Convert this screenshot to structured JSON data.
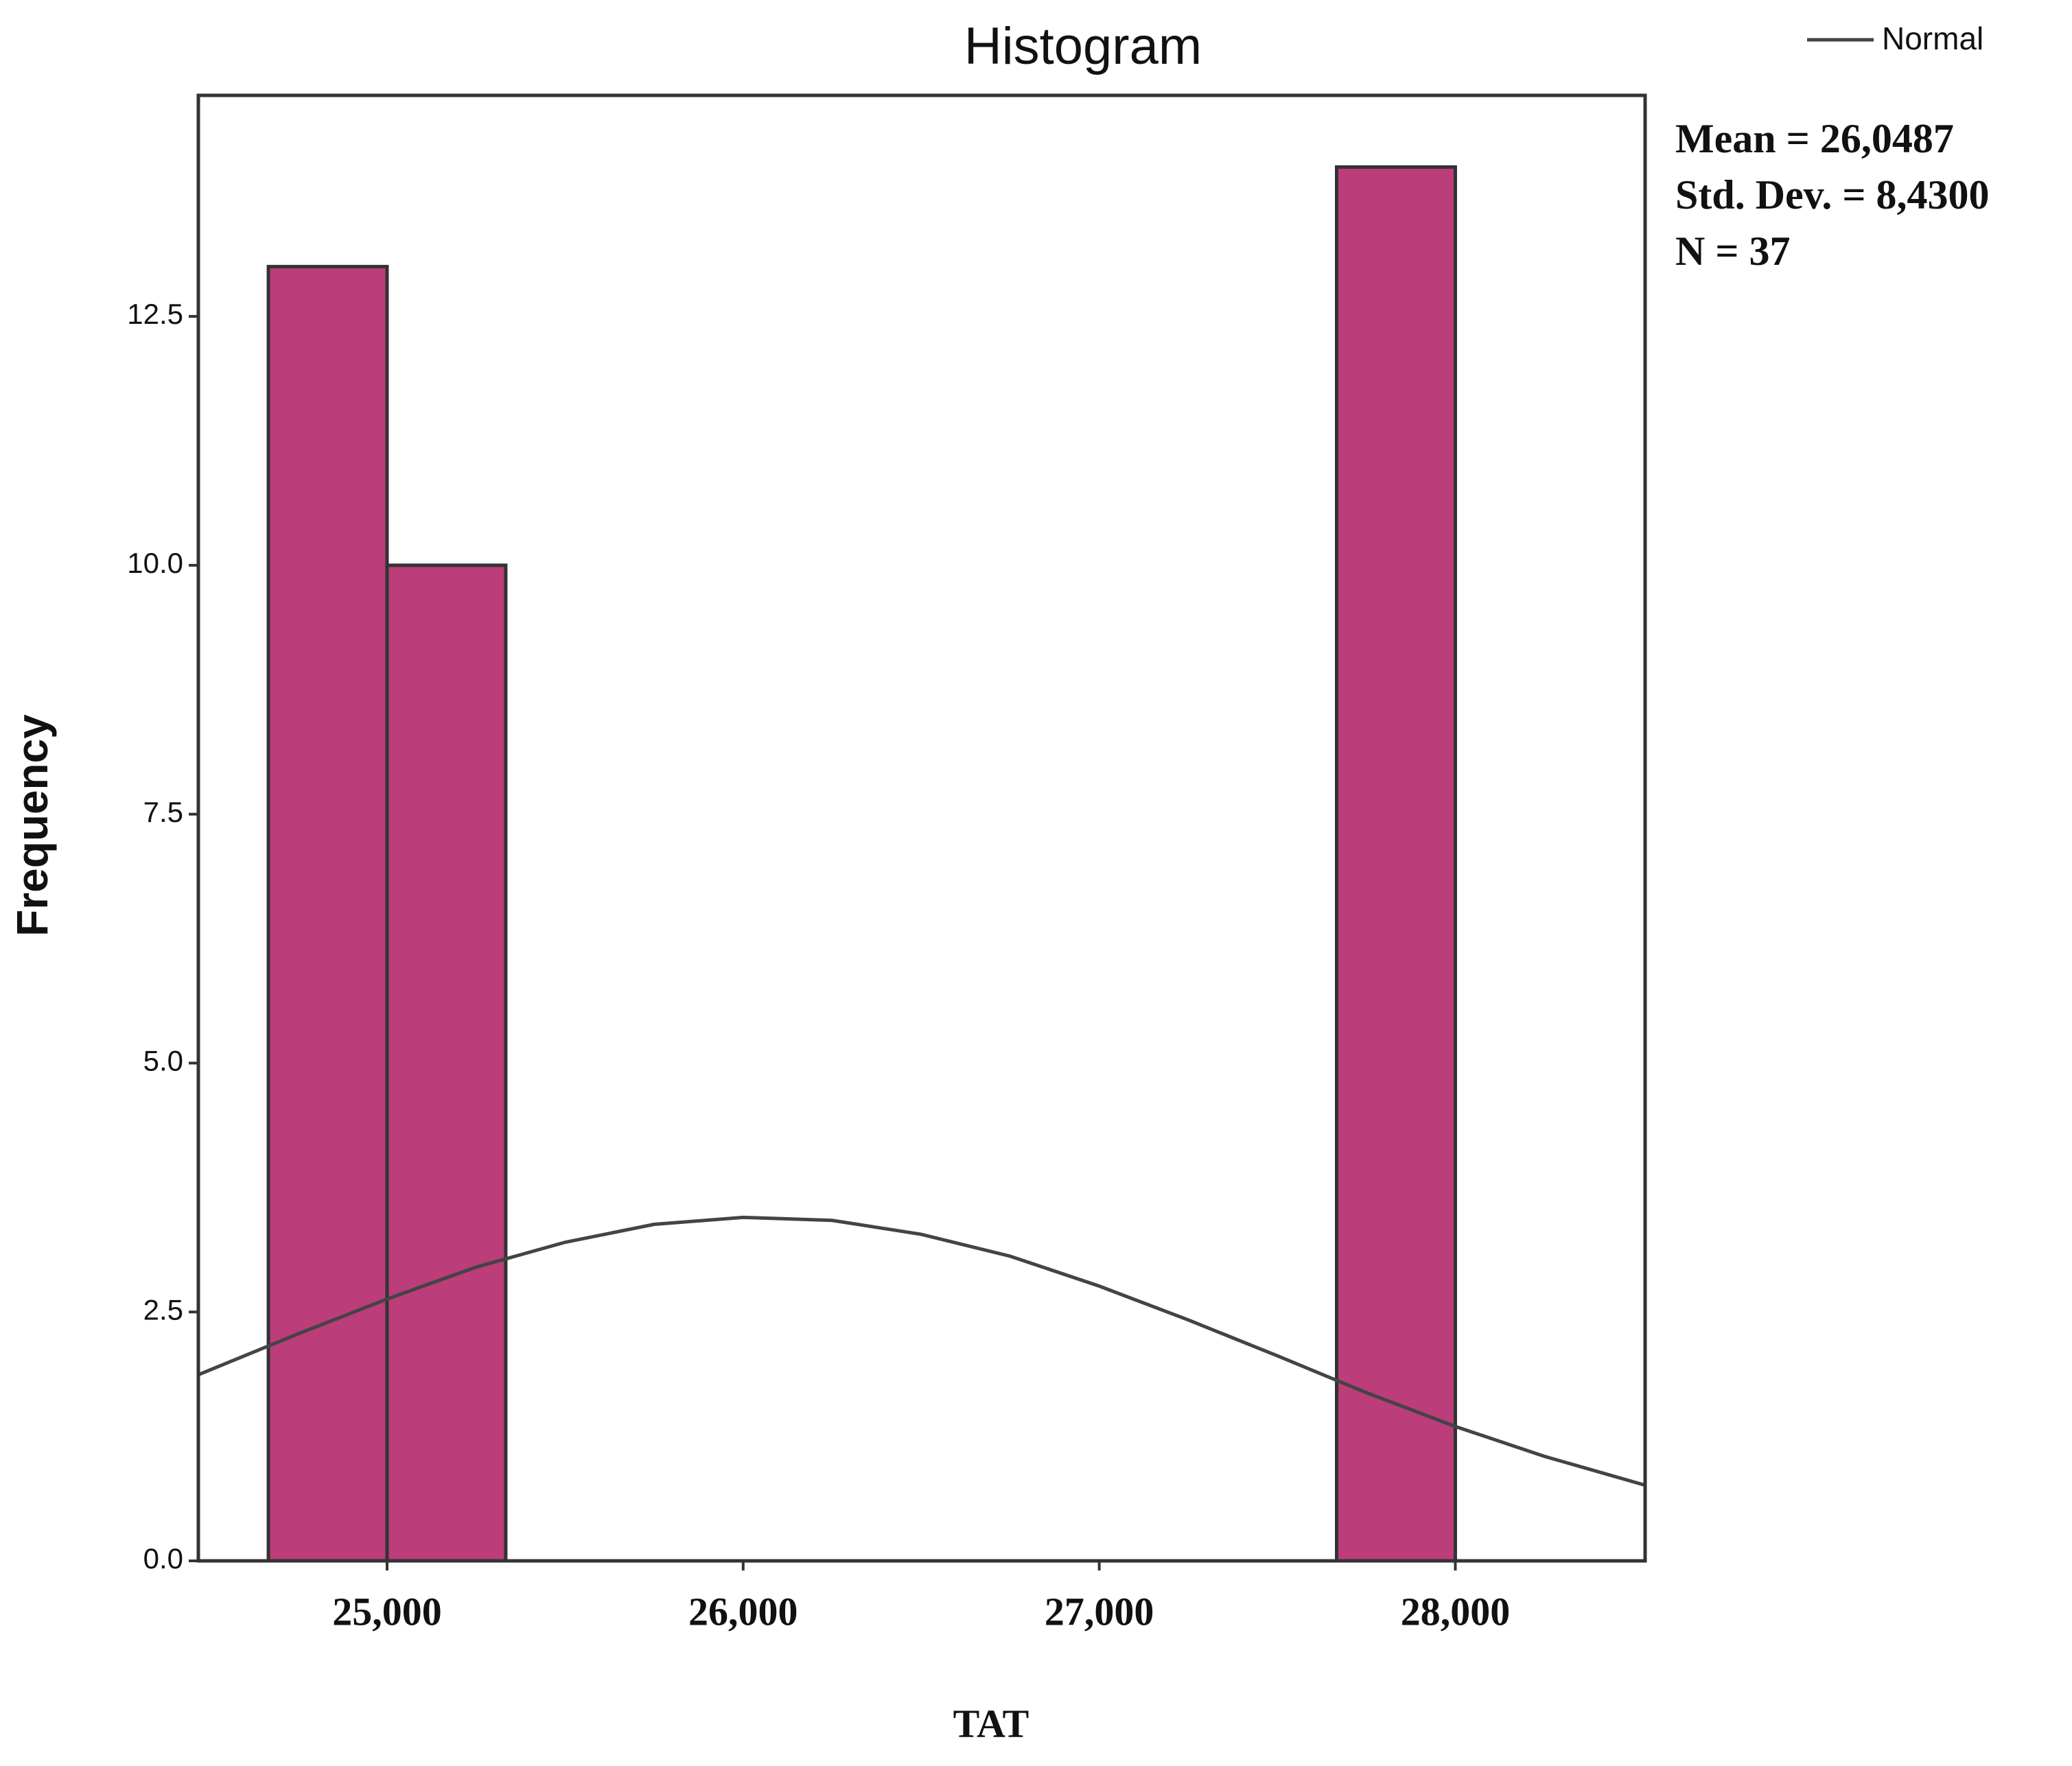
{
  "chart_data": {
    "type": "histogram",
    "title": "Histogram",
    "x_label": "TAT",
    "y_label": "Frequency",
    "bins": [
      24666.7,
      25000,
      25333.3,
      25666.7,
      26000,
      26333.3,
      26666.7,
      27000,
      27333.3,
      27666.7,
      28000
    ],
    "values": [
      13,
      10,
      0,
      0,
      0,
      0,
      0,
      0,
      0,
      14
    ],
    "color": "#bb3d7a",
    "xlim": [
      24470,
      28533
    ],
    "xticks": [
      {
        "value": 25000,
        "label": "25,000"
      },
      {
        "value": 26000,
        "label": "26,000"
      },
      {
        "value": 27000,
        "label": "27,000"
      },
      {
        "value": 28000,
        "label": "28,000"
      }
    ],
    "ylim": [
      0,
      14.72
    ],
    "yticks": [
      {
        "value": 0,
        "label": "0.0"
      },
      2.5,
      {
        "value": 5,
        "label": "5.0"
      },
      7.5,
      {
        "value": 10,
        "label": "10.0"
      },
      12.5
    ],
    "normal_curve": {
      "name": "Normal",
      "color": "#444444",
      "x": [
        24470,
        24750,
        25000,
        25250,
        25500,
        25750,
        26000,
        26250,
        26500,
        26750,
        27000,
        27250,
        27500,
        27750,
        28000,
        28250,
        28533
      ],
      "values": [
        1.87,
        2.28,
        2.63,
        2.95,
        3.2,
        3.38,
        3.45,
        3.42,
        3.28,
        3.06,
        2.76,
        2.42,
        2.06,
        1.69,
        1.35,
        1.05,
        0.76
      ]
    },
    "stats": [
      "Mean = 26,0487",
      "Std. Dev. = 8,4300",
      "N = 37"
    ]
  }
}
